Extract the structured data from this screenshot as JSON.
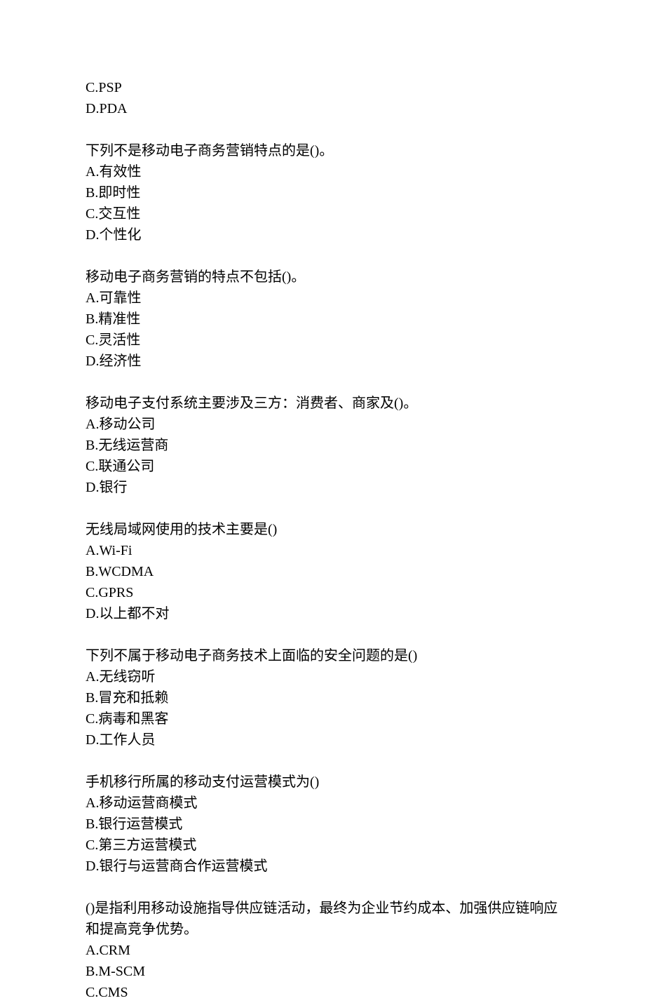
{
  "orphan": {
    "options": [
      "C.PSP",
      "D.PDA"
    ]
  },
  "questions": [
    {
      "text": "下列不是移动电子商务营销特点的是()。",
      "options": [
        "A.有效性",
        "B.即时性",
        "C.交互性",
        "D.个性化"
      ]
    },
    {
      "text": "移动电子商务营销的特点不包括()。",
      "options": [
        "A.可靠性",
        "B.精准性",
        "C.灵活性",
        "D.经济性"
      ]
    },
    {
      "text": "移动电子支付系统主要涉及三方：消费者、商家及()。",
      "options": [
        "A.移动公司",
        "B.无线运营商",
        "C.联通公司",
        "D.银行"
      ]
    },
    {
      "text": "无线局域网使用的技术主要是()",
      "options": [
        "A.Wi-Fi",
        "B.WCDMA",
        "C.GPRS",
        "D.以上都不对"
      ]
    },
    {
      "text": "下列不属于移动电子商务技术上面临的安全问题的是()",
      "options": [
        "A.无线窃听",
        "B.冒充和抵赖",
        "C.病毒和黑客",
        "D.工作人员"
      ]
    },
    {
      "text": "手机移行所属的移动支付运营模式为()",
      "options": [
        "A.移动运营商模式",
        "B.银行运营模式",
        "C.第三方运营模式",
        "D.银行与运营商合作运营模式"
      ]
    },
    {
      "text": "()是指利用移动设施指导供应链活动，最终为企业节约成本、加强供应链响应和提高竞争优势。",
      "options": [
        "A.CRM",
        "B.M-SCM",
        "C.CMS"
      ]
    }
  ]
}
